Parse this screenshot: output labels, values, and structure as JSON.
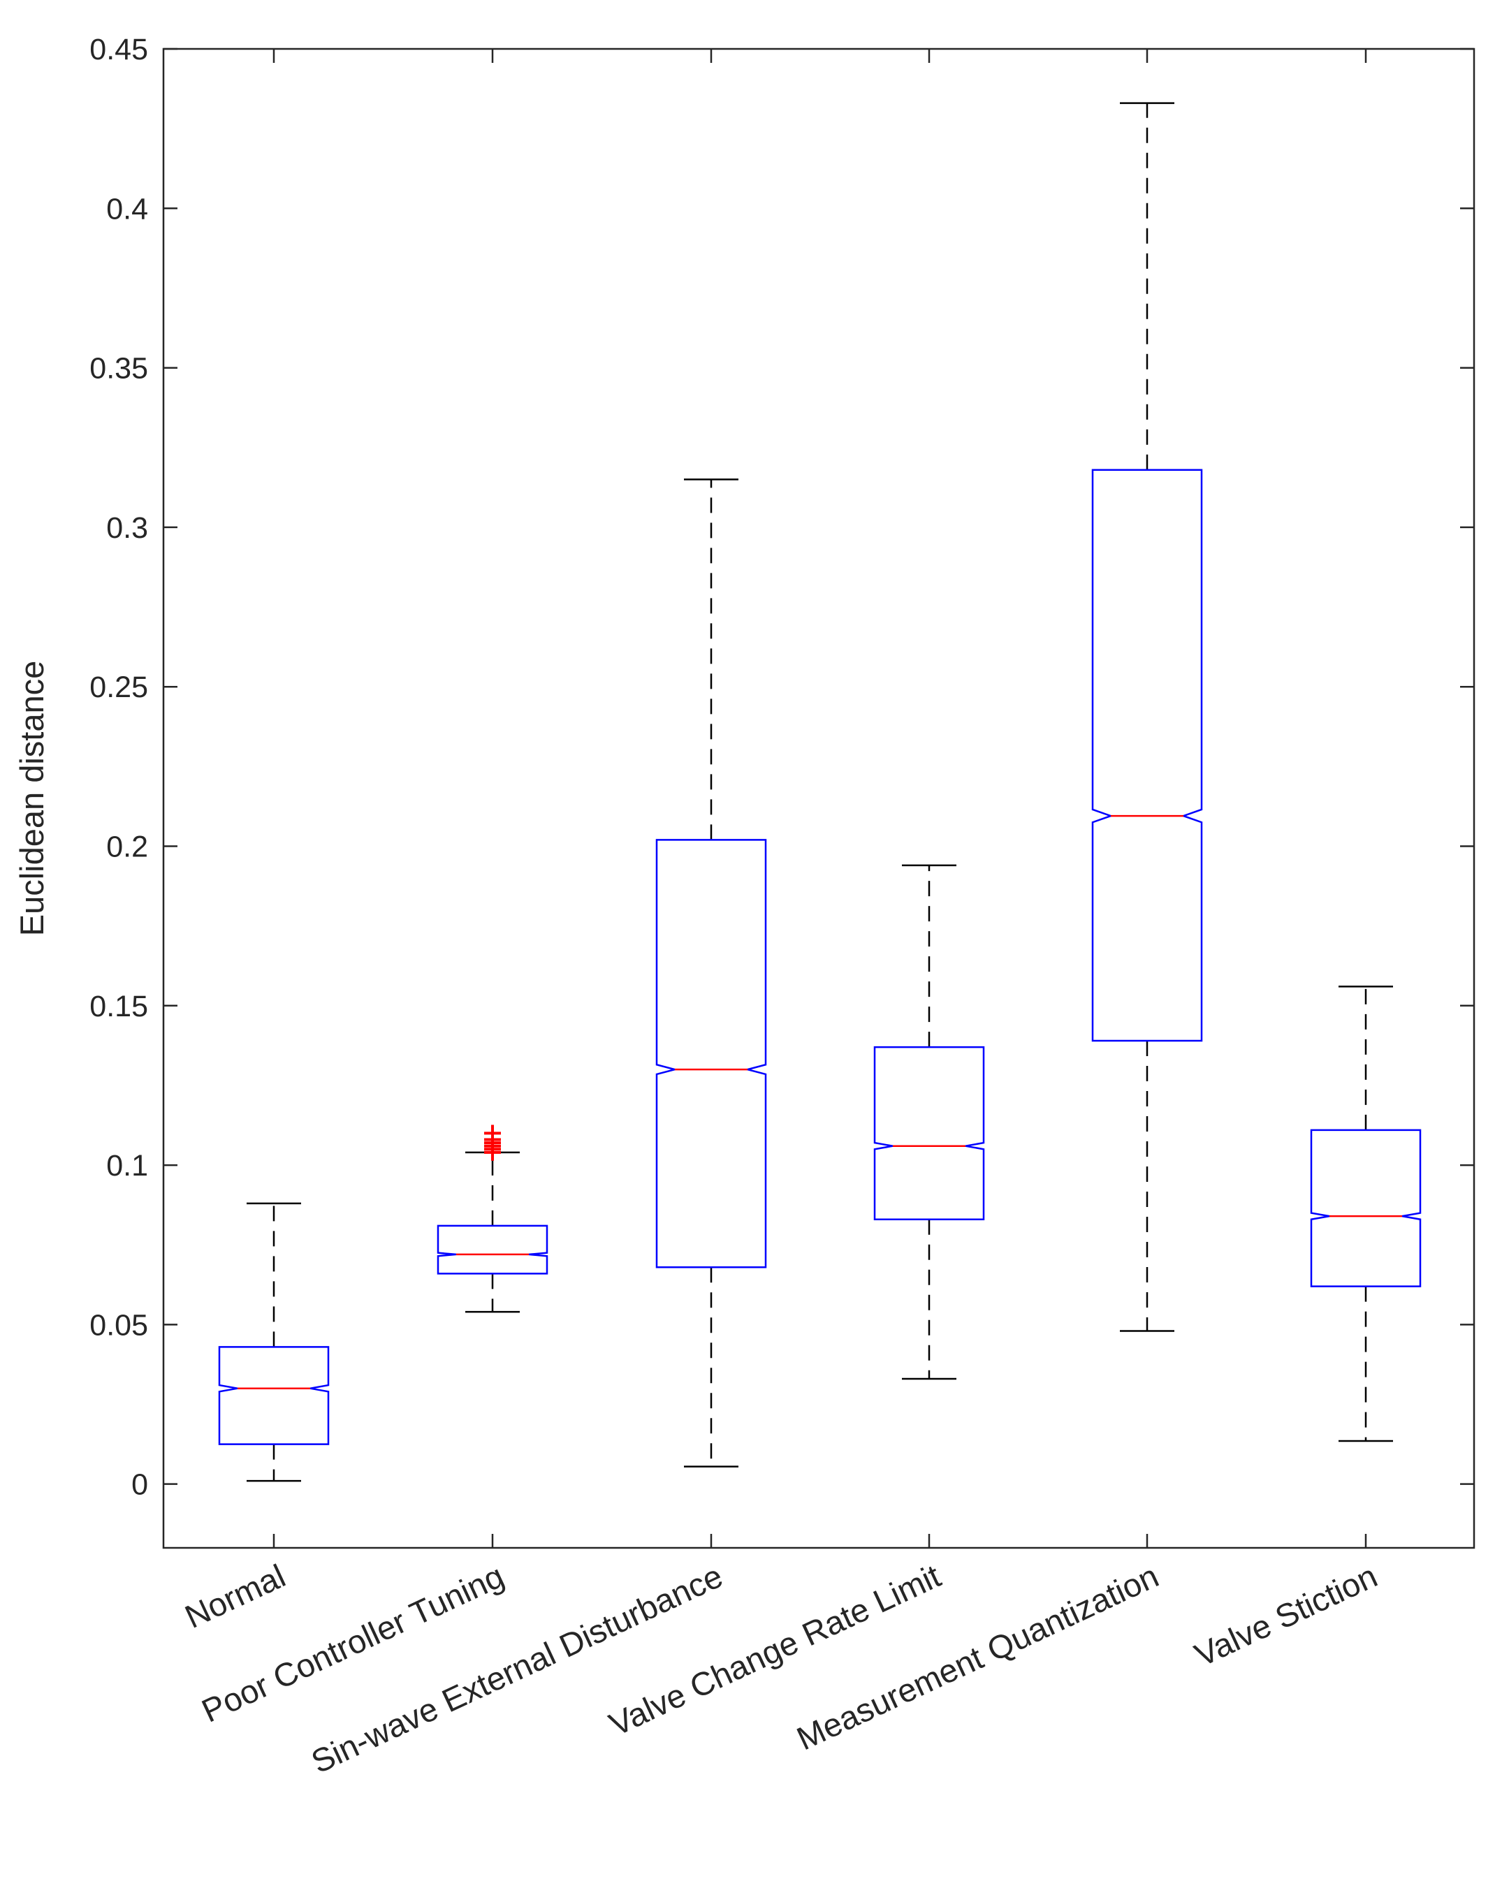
{
  "chart_data": {
    "type": "box",
    "title": "",
    "xlabel": "",
    "ylabel": "Euclidean distance",
    "ylim": [
      -0.02,
      0.45
    ],
    "yticks": [
      0,
      0.05,
      0.1,
      0.15,
      0.2,
      0.25,
      0.3,
      0.35,
      0.4,
      0.45
    ],
    "ytick_labels": [
      "0",
      "0.05",
      "0.1",
      "0.15",
      "0.2",
      "0.25",
      "0.3",
      "0.35",
      "0.4",
      "0.45"
    ],
    "notched": true,
    "grid": false,
    "categories": [
      "Normal",
      "Poor Controller Tuning",
      "Sin-wave External Disturbance",
      "Valve Change Rate Limit",
      "Measurement Quantization",
      "Valve Stiction"
    ],
    "boxes": [
      {
        "category": "Normal",
        "whisker_low": 0.001,
        "q1": 0.0125,
        "median": 0.03,
        "q3": 0.043,
        "whisker_high": 0.088,
        "notch_low": 0.029,
        "notch_high": 0.031,
        "outliers": []
      },
      {
        "category": "Poor Controller Tuning",
        "whisker_low": 0.054,
        "q1": 0.066,
        "median": 0.072,
        "q3": 0.081,
        "whisker_high": 0.104,
        "notch_low": 0.0715,
        "notch_high": 0.0725,
        "outliers": [
          0.104,
          0.105,
          0.106,
          0.107,
          0.108,
          0.11
        ]
      },
      {
        "category": "Sin-wave External Disturbance",
        "whisker_low": 0.0055,
        "q1": 0.068,
        "median": 0.13,
        "q3": 0.202,
        "whisker_high": 0.315,
        "notch_low": 0.1285,
        "notch_high": 0.1315,
        "outliers": []
      },
      {
        "category": "Valve Change Rate Limit",
        "whisker_low": 0.033,
        "q1": 0.083,
        "median": 0.106,
        "q3": 0.137,
        "whisker_high": 0.194,
        "notch_low": 0.105,
        "notch_high": 0.107,
        "outliers": []
      },
      {
        "category": "Measurement Quantization",
        "whisker_low": 0.048,
        "q1": 0.139,
        "median": 0.2095,
        "q3": 0.318,
        "whisker_high": 0.433,
        "notch_low": 0.2075,
        "notch_high": 0.2115,
        "outliers": []
      },
      {
        "category": "Valve Stiction",
        "whisker_low": 0.0135,
        "q1": 0.062,
        "median": 0.084,
        "q3": 0.111,
        "whisker_high": 0.156,
        "notch_low": 0.083,
        "notch_high": 0.085,
        "outliers": []
      }
    ],
    "colors": {
      "box": "#0000ff",
      "median": "#ff0000",
      "whisker": "#000000",
      "outlier": "#ff0000",
      "axis": "#262626"
    }
  }
}
